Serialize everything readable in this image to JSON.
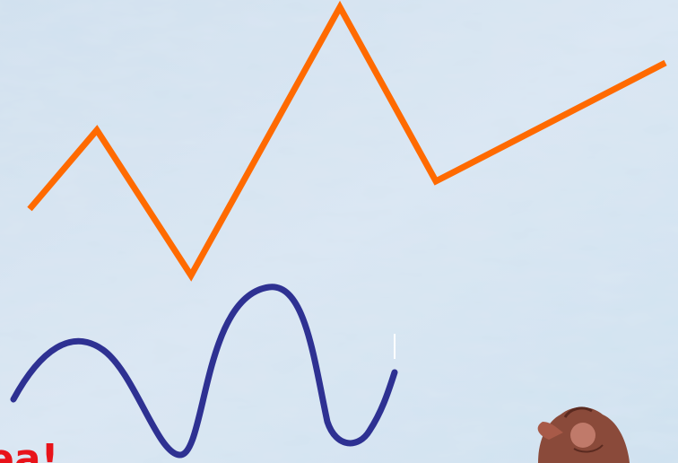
{
  "slide": {
    "caption": "ea!"
  }
}
